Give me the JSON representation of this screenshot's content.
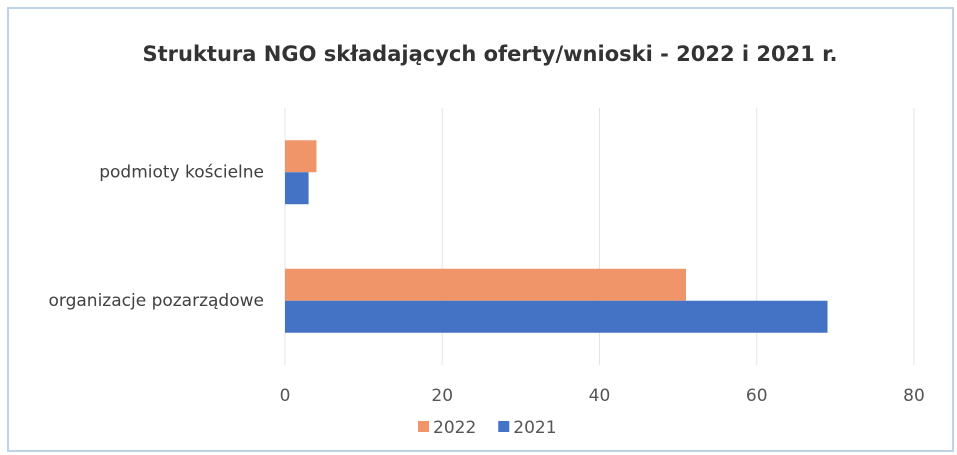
{
  "chart_data": {
    "type": "bar",
    "orientation": "horizontal",
    "title": "Struktura NGO składających oferty/wnioski - 2022 i 2021 r.",
    "categories": [
      "podmioty kościelne",
      "organizacje pozarządowe"
    ],
    "series": [
      {
        "name": "2022",
        "color": "#f0956a",
        "values": [
          4,
          51
        ]
      },
      {
        "name": "2021",
        "color": "#4472c4",
        "values": [
          3,
          69
        ]
      }
    ],
    "xlim": [
      0,
      80
    ],
    "xticks": [
      0,
      20,
      40,
      60,
      80
    ],
    "grid": true,
    "legend": "bottom"
  }
}
